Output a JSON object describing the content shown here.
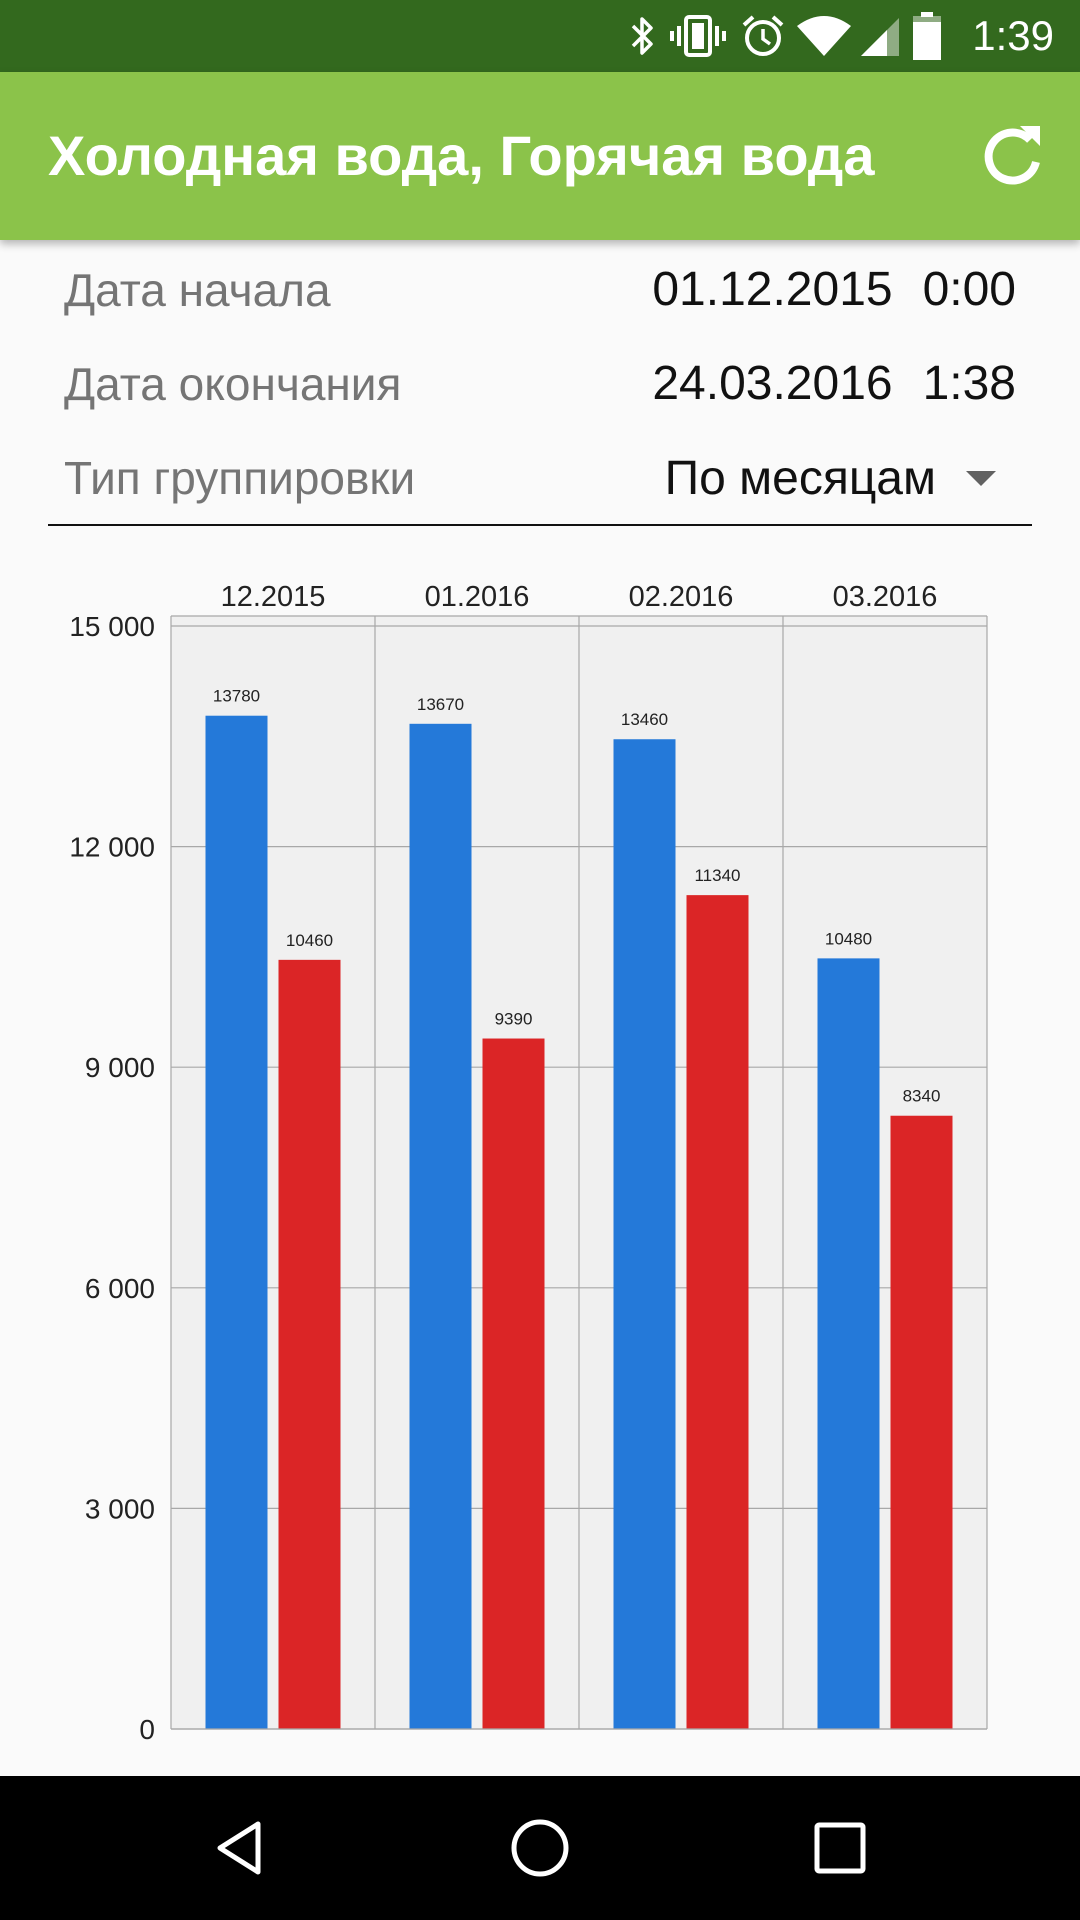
{
  "status_bar": {
    "time": "1:39",
    "icons": [
      "bluetooth-icon",
      "vibrate-icon",
      "alarm-icon",
      "wifi-icon",
      "signal-icon",
      "battery-icon"
    ]
  },
  "app_bar": {
    "title": "Холодная вода, Горячая вода",
    "refresh_icon": "refresh-icon",
    "background": "#8bc34a",
    "status_bar_color": "#33691e"
  },
  "filters": {
    "start": {
      "label": "Дата начала",
      "date": "01.12.2015",
      "time": "0:00"
    },
    "end": {
      "label": "Дата окончания",
      "date": "24.03.2016",
      "time": "1:38"
    },
    "grouping": {
      "label": "Тип группировки",
      "value": "По месяцам"
    }
  },
  "chart_data": {
    "type": "bar",
    "categories": [
      "12.2015",
      "01.2016",
      "02.2016",
      "03.2016"
    ],
    "series": [
      {
        "values": [
          13780,
          13670,
          13460,
          10480
        ],
        "color": "#2479d9"
      },
      {
        "values": [
          10460,
          9390,
          11340,
          8340
        ],
        "color": "#db2526"
      }
    ],
    "ylim": [
      0,
      15000
    ],
    "yticks": [
      0,
      3000,
      6000,
      9000,
      12000,
      15000
    ],
    "ytick_labels": [
      "0",
      "3 000",
      "6 000",
      "9 000",
      "12 000",
      "15 000"
    ],
    "category_labels_position": "top",
    "data_labels": true,
    "grid": true,
    "xlabel": "",
    "ylabel": "",
    "title": ""
  },
  "nav_bar": {
    "icons": [
      "back-icon",
      "home-icon",
      "recents-icon"
    ]
  }
}
